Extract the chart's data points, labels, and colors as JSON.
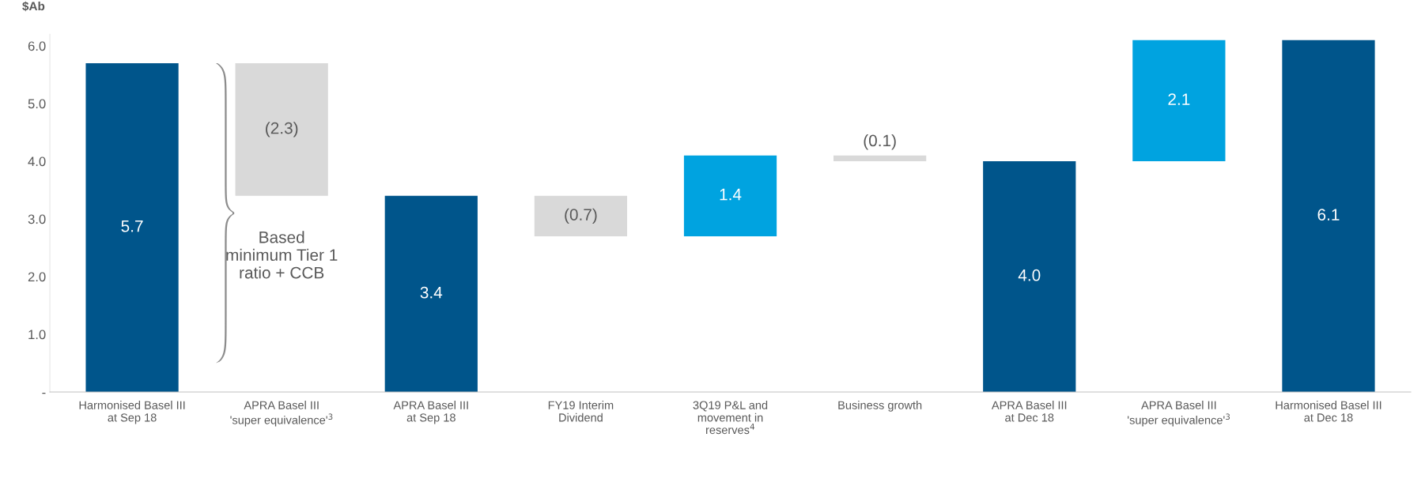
{
  "chart_data": {
    "type": "bar",
    "ylabel": "$Ab",
    "categories": [
      "Harmonised Basel III\nat Sep 18",
      "APRA Basel III\n'super equivalence'$^{3}$",
      "APRA Basel III\nat Sep 18",
      "FY19 Interim\nDividend",
      "3Q19 P&L and\nmovement in\nreserves$^{4}$",
      "Business growth",
      "APRA Basel III\nat Dec 18",
      "APRA Basel III\n'super equivalence'$^{3}$",
      "Harmonised Basel III\nat Dec 18"
    ],
    "values": [
      5.7,
      -2.3,
      3.4,
      -0.7,
      1.4,
      -0.1,
      4.0,
      2.1,
      6.1
    ],
    "base": [
      0,
      5.7,
      0,
      3.4,
      2.7,
      4.1,
      0,
      4.0,
      0
    ],
    "colors": [
      "#00558b",
      "#d9d9d9",
      "#00558b",
      "#d9d9d9",
      "#00a3e0",
      "#d9d9d9",
      "#00558b",
      "#00a3e0",
      "#00558b"
    ],
    "value_labels": [
      "5.7",
      "(2.3)",
      "3.4",
      "(0.7)",
      "1.4",
      "(0.1)",
      "4.0",
      "2.1",
      "6.1"
    ],
    "ylim": [
      0,
      6.2
    ],
    "yticks": [
      {
        "value": 0,
        "label": "-"
      },
      {
        "value": 1,
        "label": "1.0"
      },
      {
        "value": 2,
        "label": "2.0"
      },
      {
        "value": 3,
        "label": "3.0"
      },
      {
        "value": 4,
        "label": "4.0"
      },
      {
        "value": 5,
        "label": "5.0"
      },
      {
        "value": 6,
        "label": "6.0"
      }
    ],
    "annotations": [
      "Based\nminimum Tier 1\nratio + CCB"
    ],
    "grid": false,
    "legend": false
  }
}
